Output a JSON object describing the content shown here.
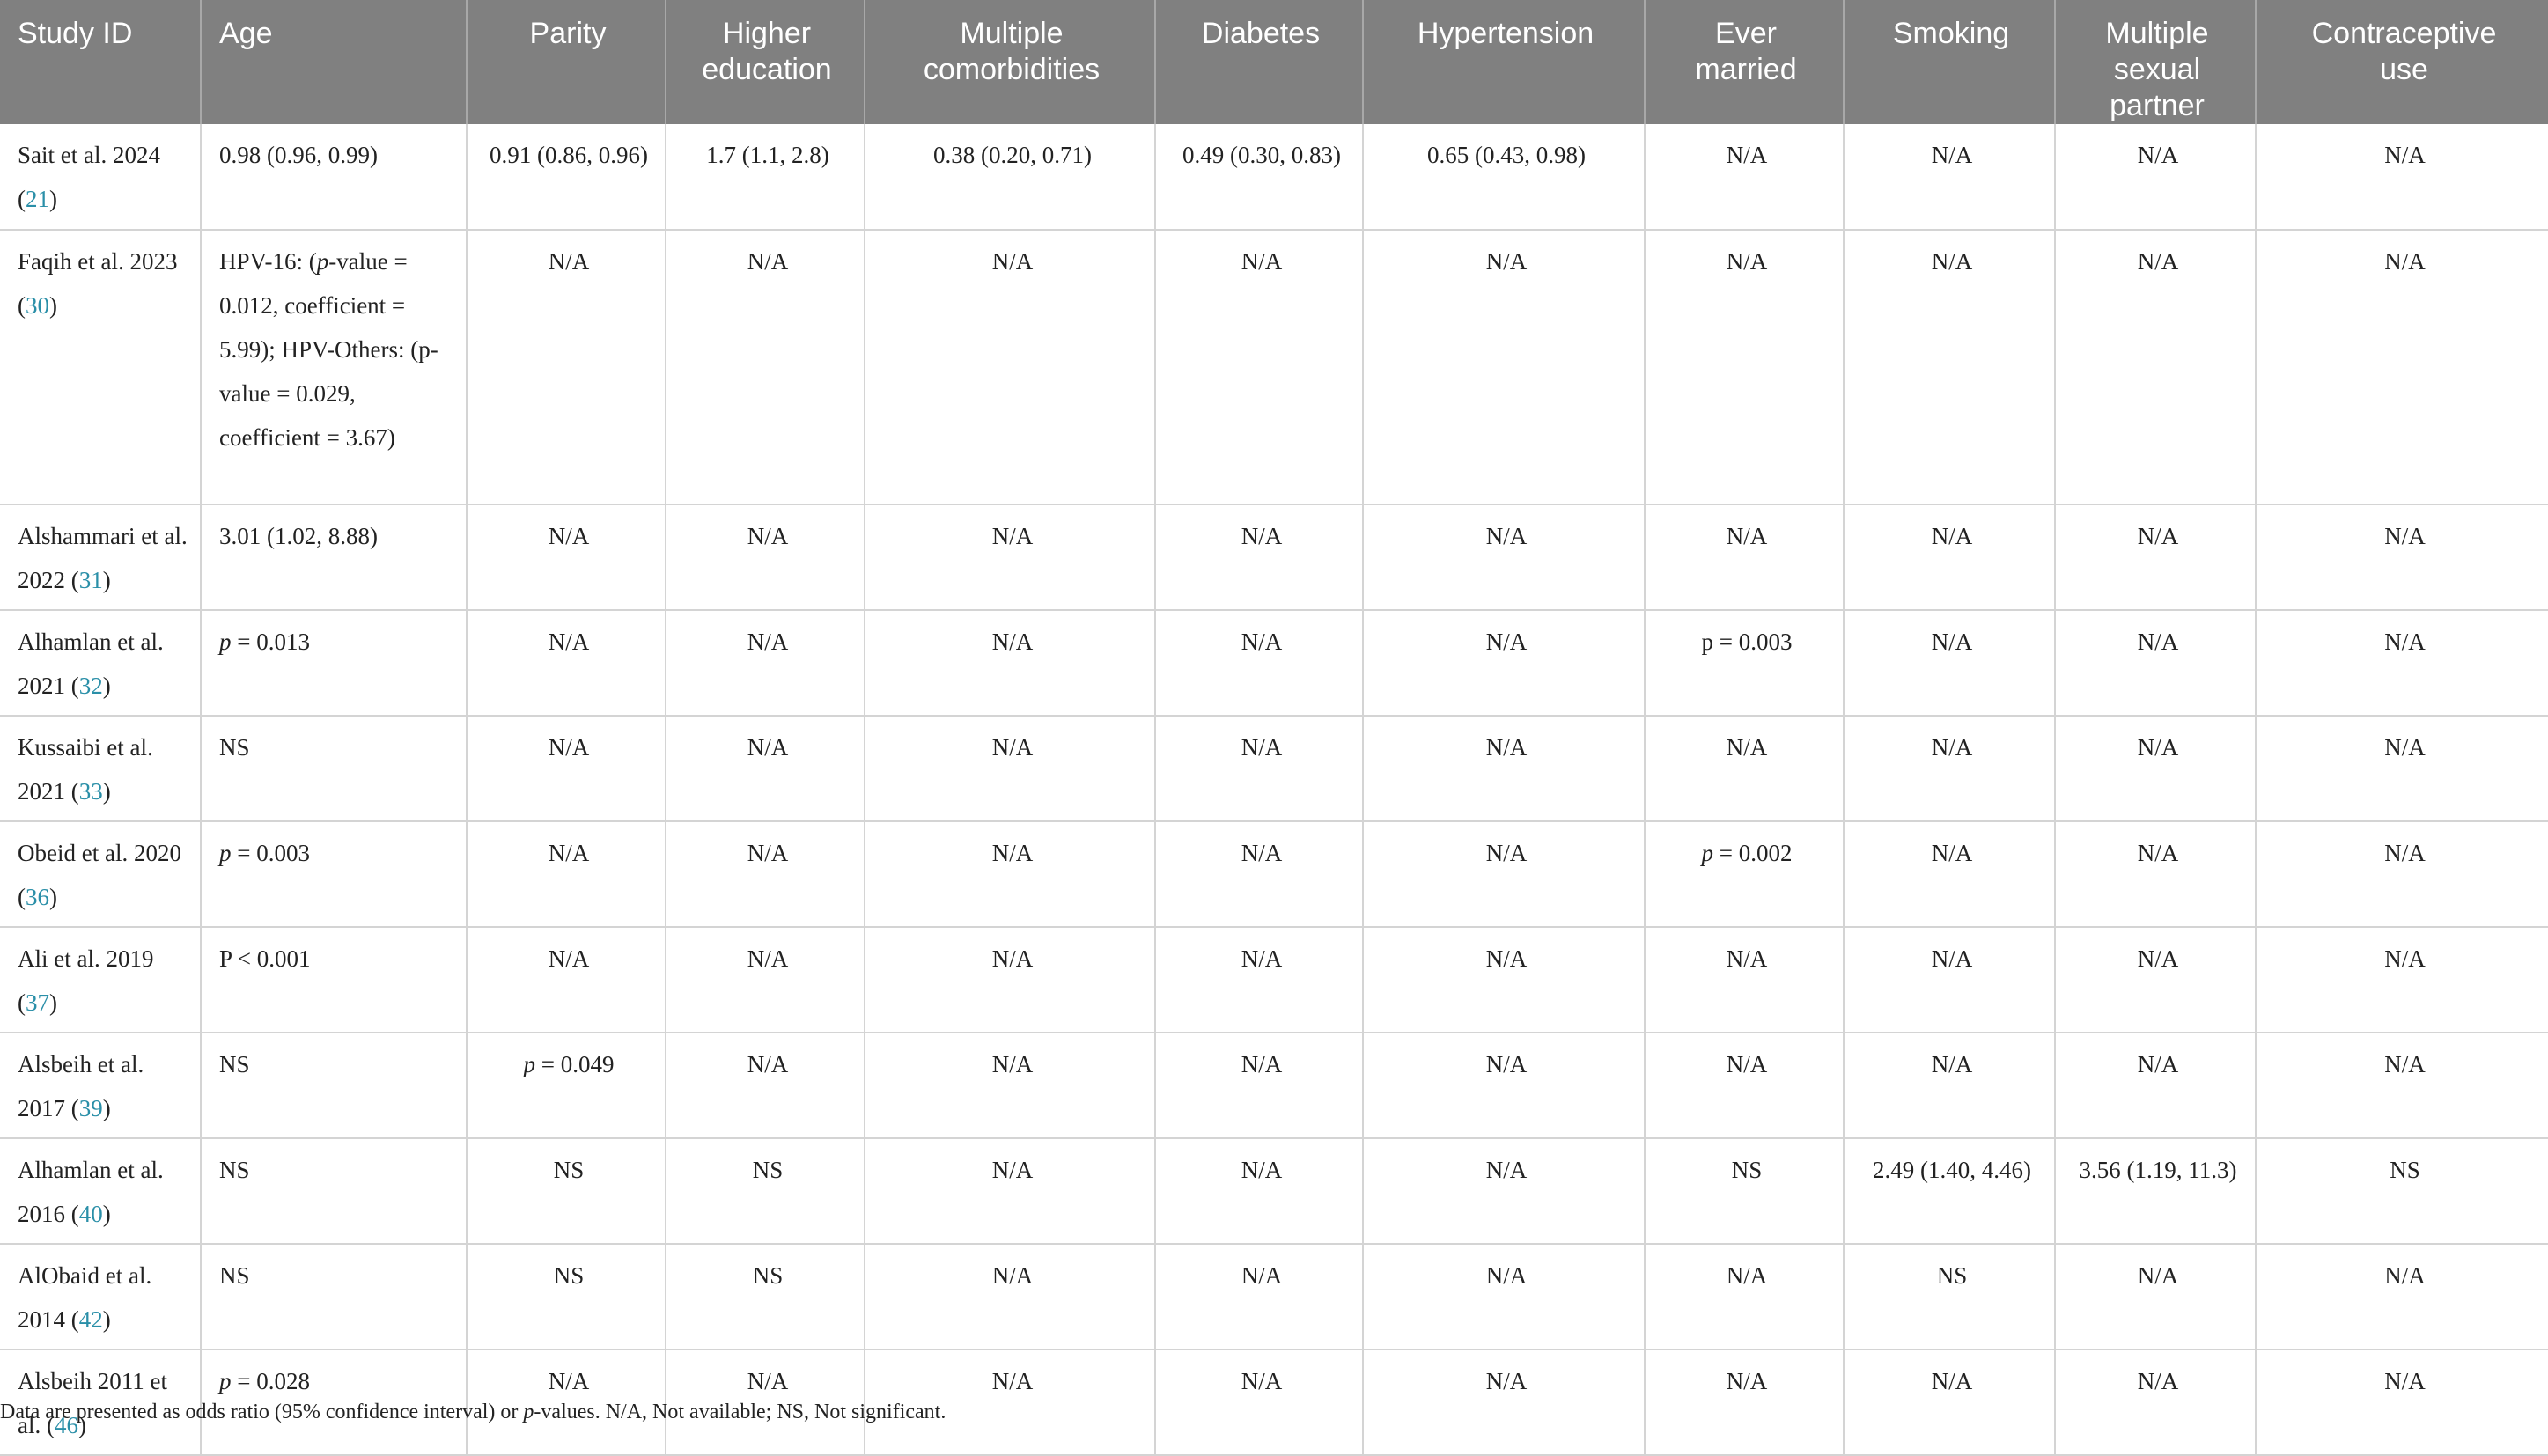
{
  "table": {
    "headers": [
      "Study ID",
      "Age",
      "Parity",
      "Higher education",
      "Multiple comorbidities",
      "Diabetes",
      "Hypertension",
      "Ever married",
      "Smoking",
      "Multiple sexual partner",
      "Contraceptive use"
    ],
    "header_lines": [
      [
        "Study ID"
      ],
      [
        "Age"
      ],
      [
        "Parity"
      ],
      [
        "Higher",
        "education"
      ],
      [
        "Multiple",
        "comorbidities"
      ],
      [
        "Diabetes"
      ],
      [
        "Hypertension"
      ],
      [
        "Ever",
        "married"
      ],
      [
        "Smoking"
      ],
      [
        "Multiple",
        "sexual",
        "partner"
      ],
      [
        "Contraceptive",
        "use"
      ]
    ],
    "rows": [
      {
        "study": "Sait et al. 2024 (",
        "ref": "21",
        "cells": [
          {
            "text": "0.98 (0.96, 0.99)"
          },
          {
            "text": "0.91 (0.86, 0.96)"
          },
          {
            "text": "1.7 (1.1, 2.8)"
          },
          {
            "text": "0.38 (0.20, 0.71)"
          },
          {
            "text": "0.49 (0.30, 0.83)"
          },
          {
            "text": "0.65 (0.43, 0.98)"
          },
          {
            "text": "N/A"
          },
          {
            "text": "N/A"
          },
          {
            "text": "N/A"
          },
          {
            "text": "N/A"
          }
        ]
      },
      {
        "study": "Faqih et al. 2023 (",
        "ref": "30",
        "cells": [
          {
            "lines": [
              "HPV-16: (p-value = 0.012, coefficient = 5.99); HPV-Others: (p-value = 0.029, coefficient = 3.67)"
            ]
          },
          {
            "text": "N/A"
          },
          {
            "text": "N/A"
          },
          {
            "text": "N/A"
          },
          {
            "text": "N/A"
          },
          {
            "text": "N/A"
          },
          {
            "text": "N/A"
          },
          {
            "text": "N/A"
          },
          {
            "text": "N/A"
          },
          {
            "text": "N/A"
          }
        ]
      },
      {
        "study": "Alshammari et al. 2022 (",
        "ref": "31",
        "cells": [
          {
            "text": "3.01 (1.02, 8.88)"
          },
          {
            "text": "N/A"
          },
          {
            "text": "N/A"
          },
          {
            "text": "N/A"
          },
          {
            "text": "N/A"
          },
          {
            "text": "N/A"
          },
          {
            "text": "N/A"
          },
          {
            "text": "N/A"
          },
          {
            "text": "N/A"
          },
          {
            "text": "N/A"
          }
        ]
      },
      {
        "study": "Alhamlan et al. 2021 (",
        "ref": "32",
        "cells": [
          {
            "p": "p",
            "text": " = 0.013"
          },
          {
            "text": "N/A"
          },
          {
            "text": "N/A"
          },
          {
            "text": "N/A"
          },
          {
            "text": "N/A"
          },
          {
            "text": "N/A"
          },
          {
            "text": "p = 0.003"
          },
          {
            "text": "N/A"
          },
          {
            "text": "N/A"
          },
          {
            "text": "N/A"
          }
        ]
      },
      {
        "study": "Kussaibi et al. 2021 (",
        "ref": "33",
        "cells": [
          {
            "text": "NS"
          },
          {
            "text": "N/A"
          },
          {
            "text": "N/A"
          },
          {
            "text": "N/A"
          },
          {
            "text": "N/A"
          },
          {
            "text": "N/A"
          },
          {
            "text": "N/A"
          },
          {
            "text": "N/A"
          },
          {
            "text": "N/A"
          },
          {
            "text": "N/A"
          }
        ]
      },
      {
        "study": "Obeid et al. 2020 (",
        "ref": "36",
        "cells": [
          {
            "p": "p",
            "text": " = 0.003"
          },
          {
            "text": "N/A"
          },
          {
            "text": "N/A"
          },
          {
            "text": "N/A"
          },
          {
            "text": "N/A"
          },
          {
            "text": "N/A"
          },
          {
            "p": "p",
            "text": " = 0.002"
          },
          {
            "text": "N/A"
          },
          {
            "text": "N/A"
          },
          {
            "text": "N/A"
          }
        ]
      },
      {
        "study": "Ali et al. 2019 (",
        "ref": "37",
        "cells": [
          {
            "text": "P < 0.001"
          },
          {
            "text": "N/A"
          },
          {
            "text": "N/A"
          },
          {
            "text": "N/A"
          },
          {
            "text": "N/A"
          },
          {
            "text": "N/A"
          },
          {
            "text": "N/A"
          },
          {
            "text": "N/A"
          },
          {
            "text": "N/A"
          },
          {
            "text": "N/A"
          }
        ]
      },
      {
        "study": "Alsbeih et al. 2017 (",
        "ref": "39",
        "cells": [
          {
            "text": "NS"
          },
          {
            "p": "p",
            "text": " = 0.049"
          },
          {
            "text": "N/A"
          },
          {
            "text": "N/A"
          },
          {
            "text": "N/A"
          },
          {
            "text": "N/A"
          },
          {
            "text": "N/A"
          },
          {
            "text": "N/A"
          },
          {
            "text": "N/A"
          },
          {
            "text": "N/A"
          }
        ]
      },
      {
        "study": "Alhamlan et al. 2016 (",
        "ref": "40",
        "cells": [
          {
            "text": "NS"
          },
          {
            "text": "NS"
          },
          {
            "text": "NS"
          },
          {
            "text": "N/A"
          },
          {
            "text": "N/A"
          },
          {
            "text": "N/A"
          },
          {
            "text": "NS"
          },
          {
            "text": "2.49 (1.40, 4.46)"
          },
          {
            "text": "3.56 (1.19, 11.3)"
          },
          {
            "text": "NS"
          }
        ]
      },
      {
        "study": "AlObaid et al. 2014 (",
        "ref": "42",
        "cells": [
          {
            "text": "NS"
          },
          {
            "text": "NS"
          },
          {
            "text": "NS"
          },
          {
            "text": "N/A"
          },
          {
            "text": "N/A"
          },
          {
            "text": "N/A"
          },
          {
            "text": "N/A"
          },
          {
            "text": "NS"
          },
          {
            "text": "N/A"
          },
          {
            "text": "N/A"
          }
        ]
      },
      {
        "study": "Alsbeih 2011 et al. (",
        "ref": "46",
        "cells": [
          {
            "p": "p",
            "text": " = 0.028"
          },
          {
            "text": "N/A"
          },
          {
            "text": "N/A"
          },
          {
            "text": "N/A"
          },
          {
            "text": "N/A"
          },
          {
            "text": "N/A"
          },
          {
            "text": "N/A"
          },
          {
            "text": "N/A"
          },
          {
            "text": "N/A"
          },
          {
            "text": "N/A"
          }
        ]
      }
    ]
  },
  "footnote": {
    "before": "Data are presented as odds ratio (95% confidence interval) or ",
    "italic": "p",
    "after": "-values. N/A, Not available; NS, Not significant."
  }
}
